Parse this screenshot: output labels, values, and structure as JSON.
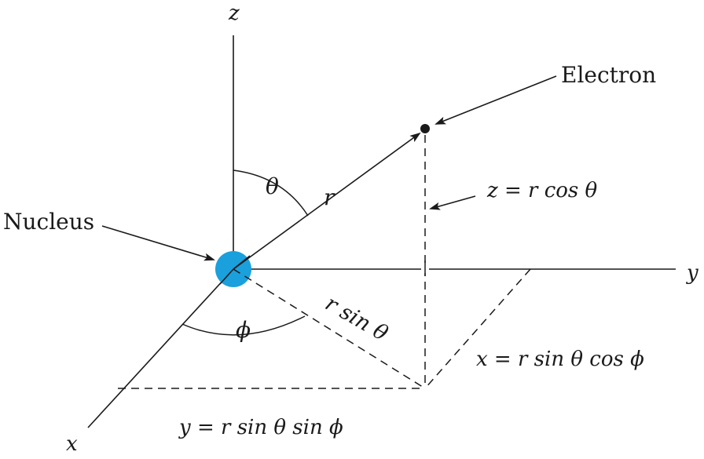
{
  "axes": {
    "z": "z",
    "y": "y",
    "x": "x"
  },
  "labels": {
    "electron": "Electron",
    "nucleus": "Nucleus",
    "theta": "θ",
    "r": "r",
    "phi": "ϕ",
    "r_sin_theta": "r sin θ"
  },
  "equations": {
    "z_eq": "z = r cos θ",
    "x_eq": "x = r sin θ cos ϕ",
    "y_eq": "y = r sin θ sin ϕ"
  },
  "colors": {
    "nucleus": "#1aa0dc",
    "ink": "#1a1a1a"
  }
}
